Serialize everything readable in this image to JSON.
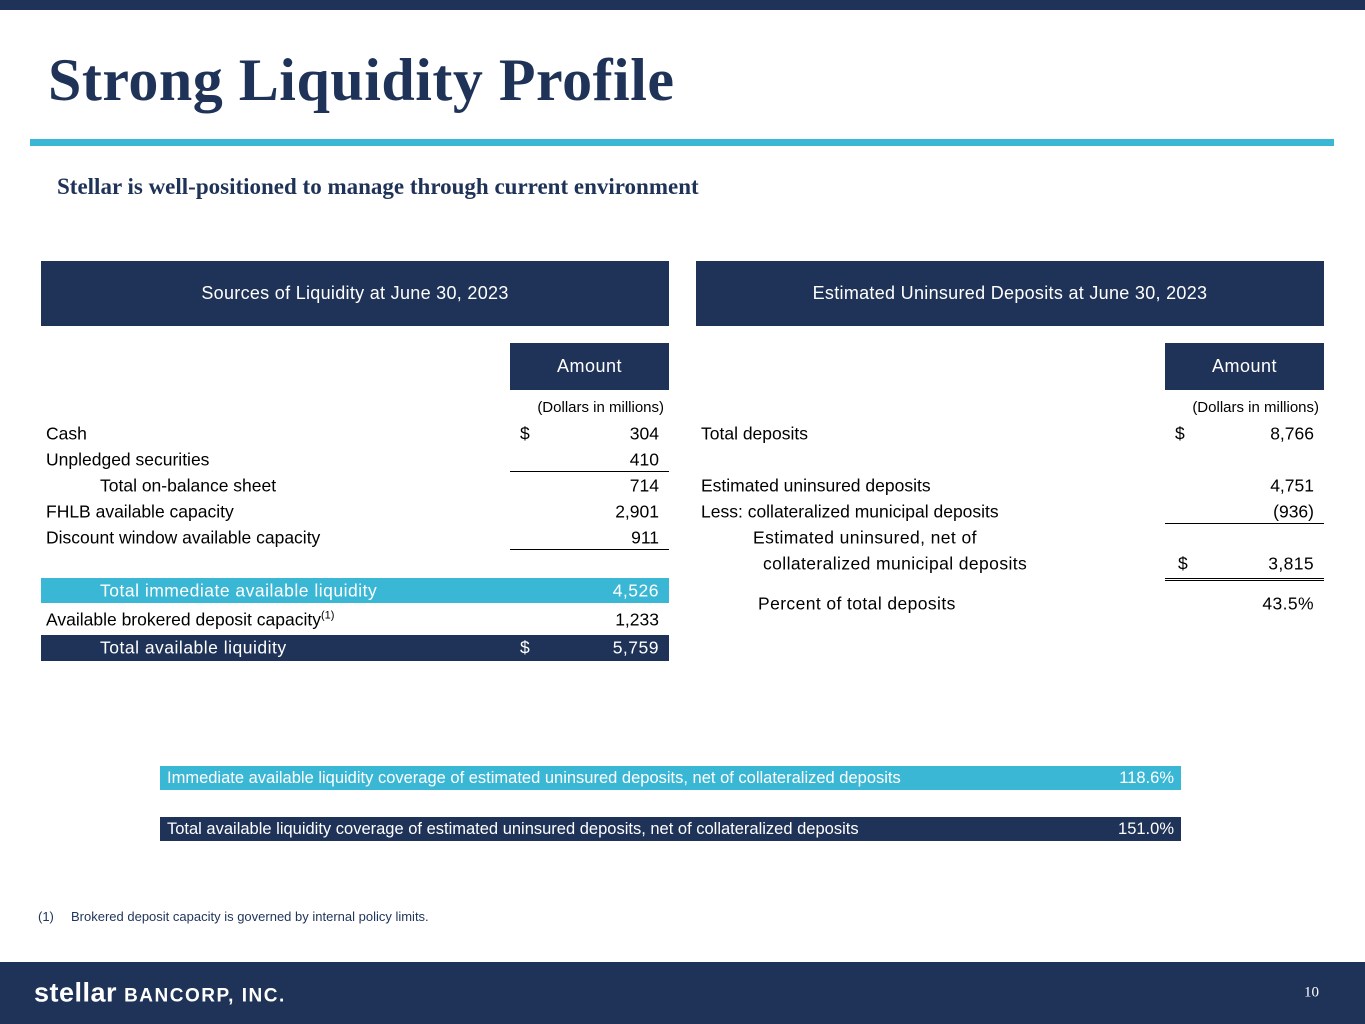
{
  "page": {
    "title": "Strong Liquidity Profile",
    "subtitle": "Stellar is well-positioned to manage through current environment",
    "page_number": "10",
    "footnote_marker": "(1)",
    "footnote_text": "Brokered deposit capacity is governed by internal policy limits."
  },
  "footer": {
    "logo_stellar": "stellar",
    "logo_bancorp": "BANCORP, INC."
  },
  "colors": {
    "navy": "#1f3257",
    "teal": "#3bb7d6",
    "background": "#ffffff"
  },
  "left_table": {
    "header": "Sources of Liquidity at June 30, 2023",
    "amount_header": "Amount",
    "units": "(Dollars in millions)",
    "rows": [
      {
        "label": "Cash",
        "currency": "$",
        "value": "304"
      },
      {
        "label": "Unpledged securities",
        "value": "410"
      },
      {
        "label": "Total on-balance sheet",
        "value": "714"
      },
      {
        "label": "FHLB available capacity",
        "value": "2,901"
      },
      {
        "label": "Discount window available capacity",
        "value": "911"
      },
      {
        "label": "Total immediate available liquidity",
        "value": "4,526"
      },
      {
        "label": "Available brokered deposit capacity",
        "superscript": "(1)",
        "value": "1,233"
      },
      {
        "label": "Total available liquidity",
        "currency": "$",
        "value": "5,759"
      }
    ]
  },
  "right_table": {
    "header": "Estimated Uninsured Deposits at June 30, 2023",
    "amount_header": "Amount",
    "units": "(Dollars in millions)",
    "rows": [
      {
        "label": "Total deposits",
        "currency": "$",
        "value": "8,766"
      },
      {
        "label": "Estimated uninsured deposits",
        "value": "4,751"
      },
      {
        "label": "Less: collateralized municipal deposits",
        "value": "(936)"
      },
      {
        "label_line1": "Estimated uninsured, net of",
        "label_line2": "collateralized municipal deposits",
        "currency": "$",
        "value": "3,815"
      },
      {
        "label": "Percent of total deposits",
        "value": "43.5%"
      }
    ]
  },
  "banners": [
    {
      "text": "Immediate available liquidity coverage of estimated uninsured deposits, net of collateralized deposits",
      "value": "118.6%"
    },
    {
      "text": "Total available liquidity coverage of estimated uninsured deposits, net of collateralized deposits",
      "value": "151.0%"
    }
  ]
}
